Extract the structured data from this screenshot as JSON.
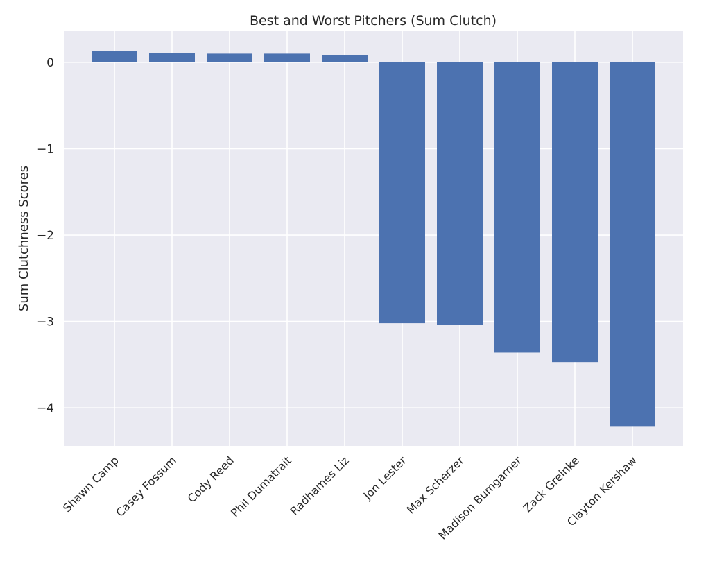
{
  "chart_data": {
    "type": "bar",
    "title": "Best and Worst Pitchers (Sum Clutch)",
    "xlabel": "",
    "ylabel": "Sum Clutchness Scores",
    "categories": [
      "Shawn Camp",
      "Casey Fossum",
      "Cody Reed",
      "Phil Dumatrait",
      "Radhames Liz",
      "Jon Lester",
      "Max Scherzer",
      "Madison Bumgarner",
      "Zack Greinke",
      "Clayton Kershaw"
    ],
    "values": [
      0.13,
      0.11,
      0.1,
      0.1,
      0.08,
      -3.02,
      -3.04,
      -3.36,
      -3.47,
      -4.21
    ],
    "ylim": [
      -4.44,
      0.36
    ],
    "yticks": [
      0,
      -1,
      -2,
      -3,
      -4
    ],
    "ytick_labels": [
      "0",
      "−1",
      "−2",
      "−3",
      "−4"
    ],
    "grid": true,
    "colors": {
      "bar": "#4c72b0",
      "plot_background": "#eaeaf2",
      "grid": "#ffffff",
      "text": "#262626"
    }
  }
}
